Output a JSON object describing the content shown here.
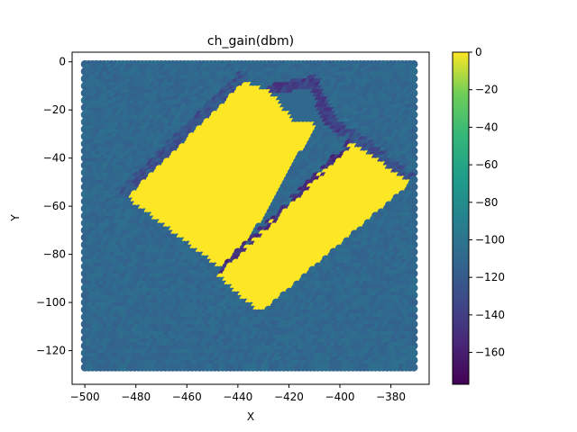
{
  "chart_data": {
    "type": "heatmap",
    "title": "ch_gain(dbm)",
    "xlabel": "X",
    "ylabel": "Y",
    "xlim": [
      -505,
      -365
    ],
    "ylim": [
      -134,
      4
    ],
    "xticks": [
      -500,
      -480,
      -460,
      -440,
      -420,
      -400,
      -380
    ],
    "yticks": [
      0,
      -20,
      -40,
      -60,
      -80,
      -100,
      -120
    ],
    "xtick_labels": [
      "−500",
      "−480",
      "−460",
      "−440",
      "−420",
      "−400",
      "−380"
    ],
    "ytick_labels": [
      "0",
      "−20",
      "−40",
      "−60",
      "−80",
      "−100",
      "−120"
    ],
    "grid": false,
    "colormap": "viridis",
    "colorbar": {
      "range": [
        -177,
        0
      ],
      "ticks": [
        0,
        -20,
        -40,
        -60,
        -80,
        -100,
        -120,
        -140,
        -160
      ],
      "tick_labels": [
        "0",
        "−20",
        "−40",
        "−60",
        "−80",
        "−100",
        "−120",
        "−140",
        "−160"
      ]
    },
    "grid_extent": {
      "x": [
        -500,
        -371
      ],
      "y": [
        -128,
        -1
      ]
    },
    "background_level": -110,
    "regions": [
      {
        "name": "main-slab",
        "value": 0,
        "polygon": [
          [
            -483,
            -57
          ],
          [
            -437,
            -9
          ],
          [
            -425,
            -14
          ],
          [
            -409,
            -27
          ],
          [
            -443,
            -89
          ]
        ]
      },
      {
        "name": "right-slab",
        "value": 0,
        "polygon": [
          [
            -395,
            -34
          ],
          [
            -372,
            -51
          ],
          [
            -431,
            -105
          ],
          [
            -448,
            -89
          ]
        ]
      },
      {
        "name": "notch-cut",
        "value": -110,
        "polygon": [
          [
            -427,
            -13
          ],
          [
            -408,
            -10
          ],
          [
            -406,
            -27
          ],
          [
            -418,
            -25
          ]
        ]
      }
    ],
    "low_bands": [
      {
        "name": "diagonal-gap",
        "value": -150,
        "polyline": [
          [
            -446,
            -87
          ],
          [
            -395,
            -34
          ]
        ]
      },
      {
        "name": "upper-left-edge",
        "value": -125,
        "polyline": [
          [
            -484,
            -55
          ],
          [
            -438,
            -7
          ]
        ]
      },
      {
        "name": "top-notch-edge",
        "value": -140,
        "polyline": [
          [
            -425,
            -12
          ],
          [
            -410,
            -9
          ],
          [
            -404,
            -24
          ],
          [
            -398,
            -30
          ]
        ]
      },
      {
        "name": "right-edge",
        "value": -125,
        "polyline": [
          [
            -395,
            -31
          ],
          [
            -374,
            -48
          ]
        ]
      }
    ]
  }
}
